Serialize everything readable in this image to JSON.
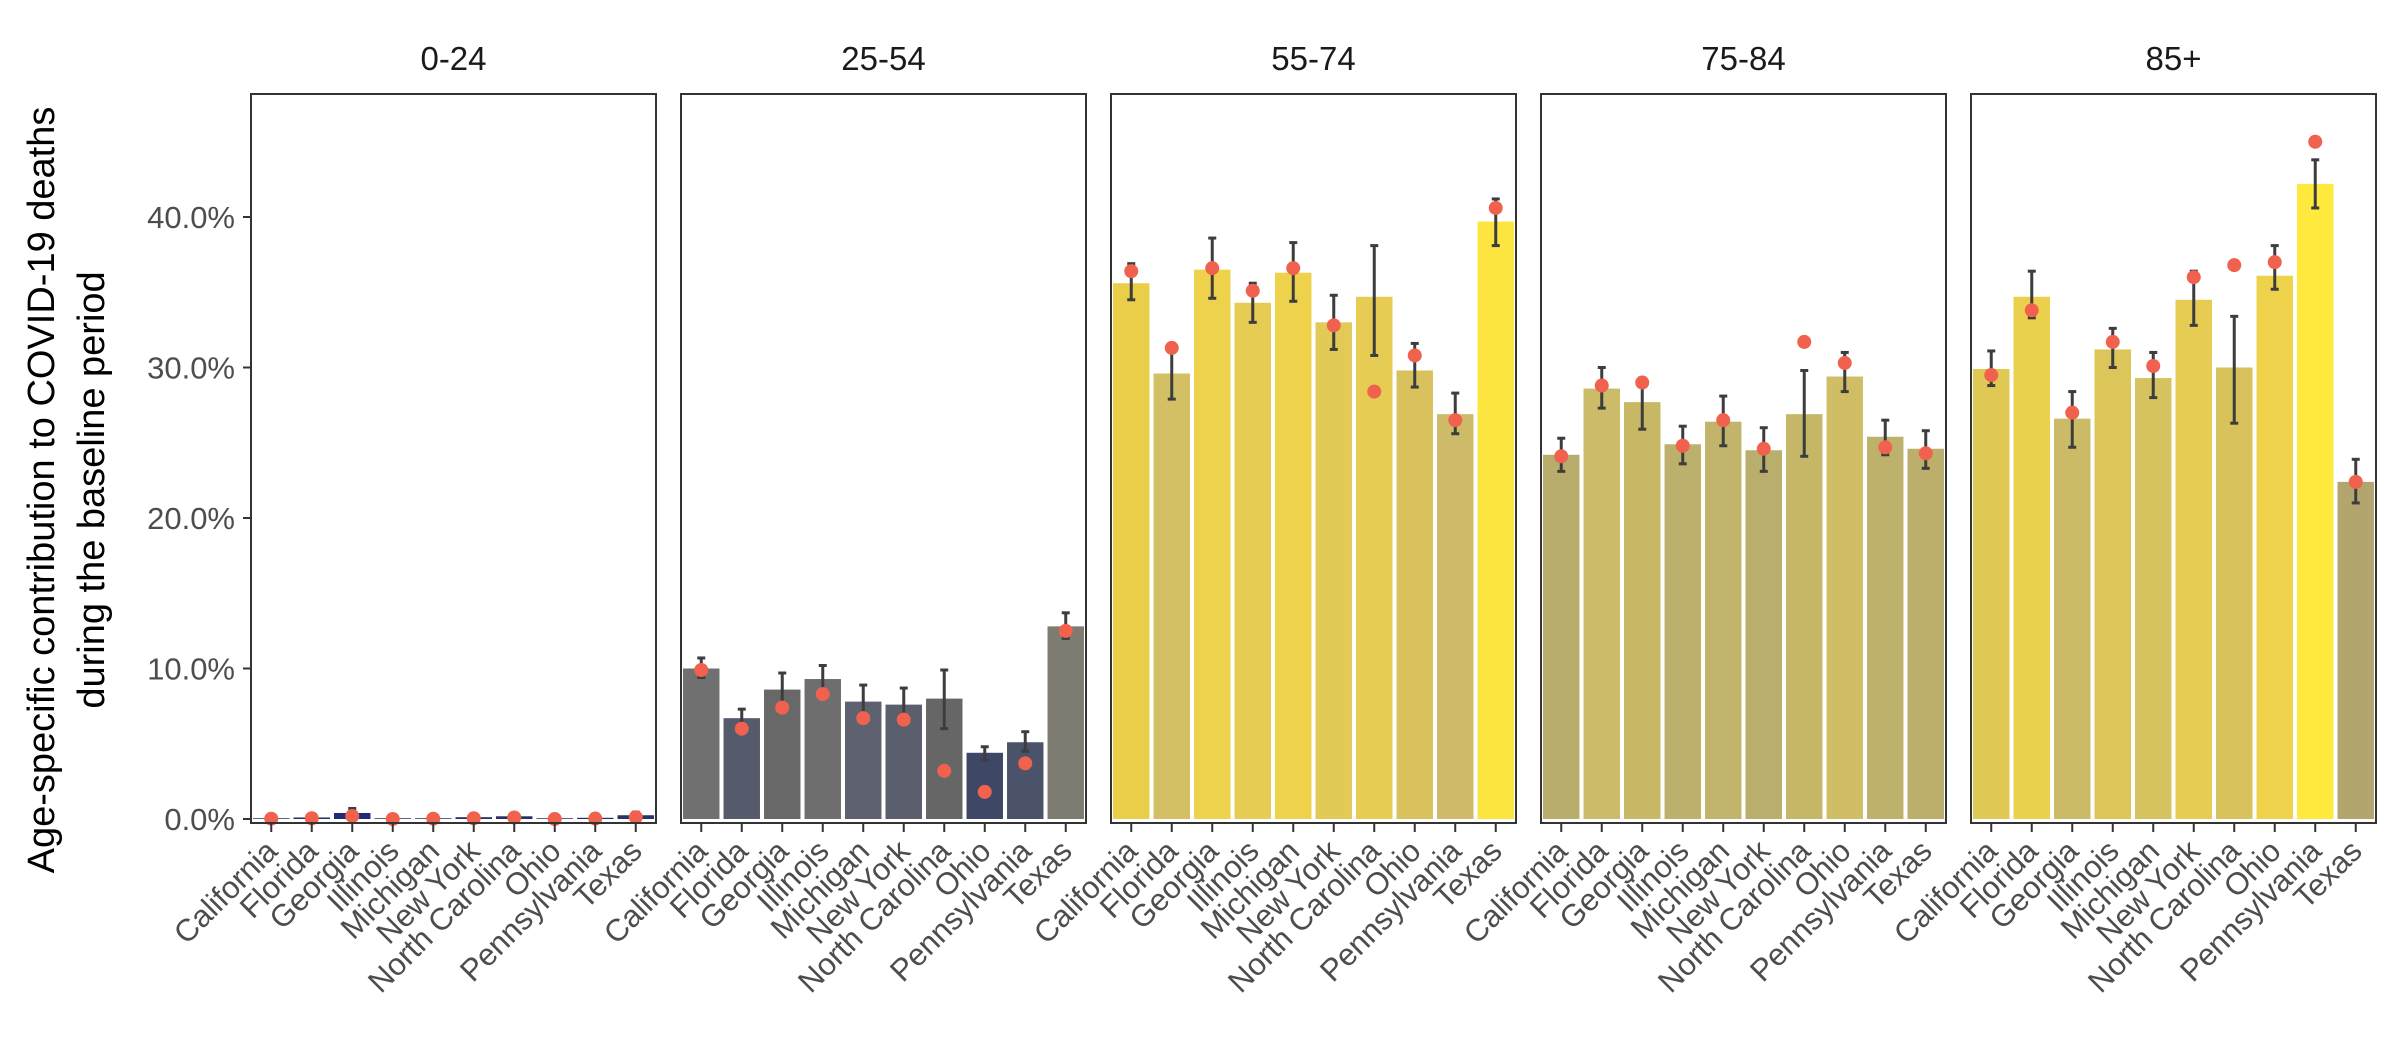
{
  "chart_data": {
    "type": "bar",
    "ylabel_lines": [
      "Age-specific contribution to COVID-19 deaths",
      "during the baseline period"
    ],
    "y_tick_labels": [
      "0.0%",
      "10.0%",
      "20.0%",
      "30.0%",
      "40.0%"
    ],
    "y_ticks": [
      0,
      10,
      20,
      30,
      40
    ],
    "ylim": [
      0,
      48
    ],
    "categories": [
      "California",
      "Florida",
      "Georgia",
      "Illinois",
      "Michigan",
      "New York",
      "North Carolina",
      "Ohio",
      "Pennsylvania",
      "Texas"
    ],
    "colors": {
      "point": "#f0624d",
      "errorbar": "#3d3d3d",
      "axis": "#333333",
      "tick": "#333333"
    },
    "panels": [
      {
        "title": "0-24",
        "values": [
          0.05,
          0.1,
          0.4,
          0.05,
          0.05,
          0.12,
          0.18,
          0.05,
          0.08,
          0.25
        ],
        "lower": [
          0.0,
          0.0,
          0.15,
          0.0,
          0.0,
          0.0,
          0.0,
          0.0,
          0.0,
          0.05
        ],
        "upper": [
          0.12,
          0.2,
          0.7,
          0.1,
          0.1,
          0.25,
          0.35,
          0.1,
          0.15,
          0.45
        ],
        "observed": [
          0.02,
          0.05,
          0.2,
          0.0,
          0.02,
          0.05,
          0.1,
          0.0,
          0.03,
          0.12
        ],
        "bar_colors": [
          "#242e5e",
          "#243060",
          "#1f2a78",
          "#242e5e",
          "#242e5e",
          "#263162",
          "#263162",
          "#242e5e",
          "#263162",
          "#283466"
        ]
      },
      {
        "title": "25-54",
        "values": [
          10.0,
          6.7,
          8.6,
          9.3,
          7.8,
          7.6,
          8.0,
          4.4,
          5.1,
          12.8
        ],
        "lower": [
          9.4,
          6.1,
          7.6,
          8.4,
          6.8,
          6.6,
          6.0,
          3.9,
          4.5,
          12.0
        ],
        "upper": [
          10.7,
          7.3,
          9.7,
          10.2,
          8.9,
          8.7,
          9.9,
          4.8,
          5.8,
          13.7
        ],
        "observed": [
          9.9,
          6.0,
          7.4,
          8.3,
          6.7,
          6.6,
          3.2,
          1.8,
          3.7,
          12.5
        ],
        "bar_colors": [
          "#707070",
          "#565b6c",
          "#686868",
          "#6e6e6e",
          "#5d6170",
          "#5b5f6d",
          "#666666",
          "#3e4866",
          "#4a536a",
          "#7e7b71"
        ]
      },
      {
        "title": "55-74",
        "values": [
          35.6,
          29.6,
          36.5,
          34.3,
          36.3,
          33.0,
          34.7,
          29.8,
          26.9,
          39.7
        ],
        "lower": [
          34.5,
          27.9,
          34.6,
          33.0,
          34.4,
          31.2,
          30.8,
          28.7,
          25.6,
          38.1
        ],
        "upper": [
          36.9,
          31.2,
          38.6,
          35.6,
          38.3,
          34.8,
          38.1,
          31.6,
          28.3,
          41.2
        ],
        "observed": [
          36.4,
          31.3,
          36.6,
          35.1,
          36.6,
          32.8,
          28.4,
          30.8,
          26.5,
          40.6
        ],
        "bar_colors": [
          "#eace4a",
          "#d4c064",
          "#eed24c",
          "#e6cc52",
          "#eed24c",
          "#e2ca56",
          "#e6cc52",
          "#d9c25e",
          "#cdbb6a",
          "#fde540"
        ]
      },
      {
        "title": "75-84",
        "values": [
          24.2,
          28.6,
          27.7,
          24.9,
          26.4,
          24.5,
          26.9,
          29.4,
          25.4,
          24.6
        ],
        "lower": [
          23.1,
          27.3,
          25.9,
          23.6,
          24.8,
          23.1,
          24.1,
          28.4,
          24.2,
          23.3
        ],
        "upper": [
          25.3,
          30.0,
          29.3,
          26.1,
          28.1,
          26.0,
          29.8,
          31.0,
          26.5,
          25.8
        ],
        "observed": [
          24.1,
          28.8,
          29.0,
          24.8,
          26.5,
          24.6,
          31.7,
          30.3,
          24.7,
          24.3
        ],
        "bar_colors": [
          "#b8ad6c",
          "#ccbb68",
          "#c8b866",
          "#bcb06c",
          "#c2b46a",
          "#b9ae6c",
          "#c5b668",
          "#d0be66",
          "#beb16b",
          "#bbaf6b"
        ]
      },
      {
        "title": "85+",
        "values": [
          29.9,
          34.7,
          26.6,
          31.2,
          29.3,
          34.5,
          30.0,
          36.1,
          42.2,
          22.4
        ],
        "lower": [
          28.8,
          33.3,
          24.7,
          30.0,
          28.0,
          32.8,
          26.3,
          35.2,
          40.6,
          21.0
        ],
        "upper": [
          31.1,
          36.4,
          28.4,
          32.6,
          31.0,
          36.4,
          33.4,
          38.1,
          43.8,
          23.9
        ],
        "observed": [
          29.5,
          33.8,
          27.0,
          31.7,
          30.1,
          36.0,
          36.8,
          37.0,
          45.0,
          22.4
        ],
        "bar_colors": [
          "#dfc854",
          "#ead04c",
          "#ccbb66",
          "#dcc65a",
          "#d6c25e",
          "#e6cc52",
          "#d8c25c",
          "#eed24c",
          "#ffe93e",
          "#b2a66e"
        ]
      }
    ]
  }
}
